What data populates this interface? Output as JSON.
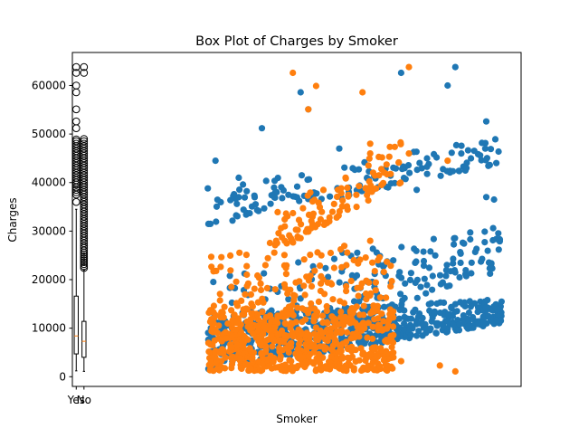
{
  "chart_data": {
    "type": "scatter",
    "title": "Box Plot of Charges by Smoker",
    "xlabel": "Smoker",
    "ylabel": "Charges",
    "ylim": [
      -2000,
      66800
    ],
    "xlim": [
      0.5,
      58.5
    ],
    "y_ticks": [
      0,
      10000,
      20000,
      30000,
      40000,
      50000,
      60000
    ],
    "y_tick_labels": [
      "0",
      "10000",
      "20000",
      "30000",
      "40000",
      "50000",
      "60000"
    ],
    "x_ticks": [
      1,
      2
    ],
    "x_tick_labels": [
      "Yes",
      "No"
    ],
    "grid": false,
    "colors": {
      "series_blue": "#1f77b4",
      "series_orange": "#ff7f0e",
      "box": "#000000",
      "median": "#ff7f0e"
    },
    "boxplot": [
      {
        "category": "Yes",
        "position": 1,
        "whisker_low": 1200,
        "q1": 4700,
        "median": 8400,
        "q3": 16600,
        "whisker_high": 34500,
        "outliers": [
          36000,
          37500,
          38000,
          38500,
          39000,
          39600,
          40000,
          40500,
          41000,
          41500,
          42000,
          42500,
          43000,
          43500,
          44000,
          44500,
          45000,
          45500,
          46000,
          46500,
          47000,
          47500,
          48000,
          48500,
          48900,
          51200,
          52600,
          55100,
          58600,
          60000,
          62600,
          63800
        ]
      },
      {
        "category": "No",
        "position": 2,
        "whisker_low": 1100,
        "q1": 4000,
        "median": 7300,
        "q3": 11400,
        "whisker_high": 22000,
        "outliers": [
          22400,
          22800,
          23200,
          23600,
          24000,
          24400,
          24800,
          25200,
          25600,
          26000,
          26500,
          27000,
          27500,
          28000,
          28500,
          29000,
          29500,
          30000,
          30500,
          31000,
          31500,
          32000,
          32500,
          33000,
          33500,
          34000,
          34500,
          35000,
          35500,
          36000,
          36500,
          37000,
          37500,
          38000,
          38500,
          39000,
          39500,
          40000,
          40500,
          41000,
          41500,
          42000,
          42500,
          43000,
          43500,
          44000,
          44500,
          45000,
          45500,
          46000,
          46500,
          47000,
          47500,
          48000,
          48500,
          49000,
          62600,
          63800
        ]
      }
    ],
    "series": [
      {
        "color": "#1f77b4",
        "bands": [
          {
            "x_from": 18,
            "x_to": 56,
            "y_from": 1200,
            "y_to": 13000,
            "y_end_from": 11000,
            "y_end_to": 16000,
            "count": 520
          },
          {
            "x_from": 18,
            "x_to": 56,
            "y_from": 1500,
            "y_to": 21000,
            "y_end_from": 22000,
            "y_end_to": 31000,
            "count": 200
          },
          {
            "x_from": 18,
            "x_to": 56,
            "y_from": 31000,
            "y_to": 39000,
            "y_end_from": 44000,
            "y_end_to": 49500,
            "count": 140
          }
        ],
        "points": [
          {
            "x": 18,
            "y": 38800
          },
          {
            "x": 19,
            "y": 44500
          },
          {
            "x": 22,
            "y": 41000
          },
          {
            "x": 25,
            "y": 51200
          },
          {
            "x": 30,
            "y": 58600
          },
          {
            "x": 31,
            "y": 55100
          },
          {
            "x": 35,
            "y": 47000
          },
          {
            "x": 43,
            "y": 62600
          },
          {
            "x": 45,
            "y": 38500
          },
          {
            "x": 49,
            "y": 60000
          },
          {
            "x": 50,
            "y": 63800
          },
          {
            "x": 54,
            "y": 52600
          },
          {
            "x": 54,
            "y": 37000
          },
          {
            "x": 55,
            "y": 36500
          }
        ]
      },
      {
        "color": "#ff7f0e",
        "bands": [
          {
            "x_from": 18,
            "x_to": 42,
            "y_from": 1200,
            "y_to": 14000,
            "y_end_from": 1200,
            "y_end_to": 14000,
            "count": 620
          },
          {
            "x_from": 18,
            "x_to": 42,
            "y_from": 14000,
            "y_to": 27000,
            "y_end_from": 14000,
            "y_end_to": 27000,
            "count": 130
          },
          {
            "x_from": 26,
            "x_to": 43,
            "y_from": 25000,
            "y_to": 33000,
            "y_end_from": 40000,
            "y_end_to": 49000,
            "count": 110
          }
        ],
        "points": [
          {
            "x": 29,
            "y": 62600
          },
          {
            "x": 32,
            "y": 59900
          },
          {
            "x": 38,
            "y": 58600
          },
          {
            "x": 31,
            "y": 55100
          },
          {
            "x": 44,
            "y": 63800
          },
          {
            "x": 49,
            "y": 44500
          },
          {
            "x": 44,
            "y": 46000
          },
          {
            "x": 48,
            "y": 2300
          },
          {
            "x": 50,
            "y": 1100
          },
          {
            "x": 41,
            "y": 2500
          },
          {
            "x": 43,
            "y": 3200
          },
          {
            "x": 40,
            "y": 12000
          },
          {
            "x": 39,
            "y": 28000
          },
          {
            "x": 40,
            "y": 24000
          },
          {
            "x": 39,
            "y": 46000
          },
          {
            "x": 39,
            "y": 48000
          }
        ]
      }
    ]
  }
}
